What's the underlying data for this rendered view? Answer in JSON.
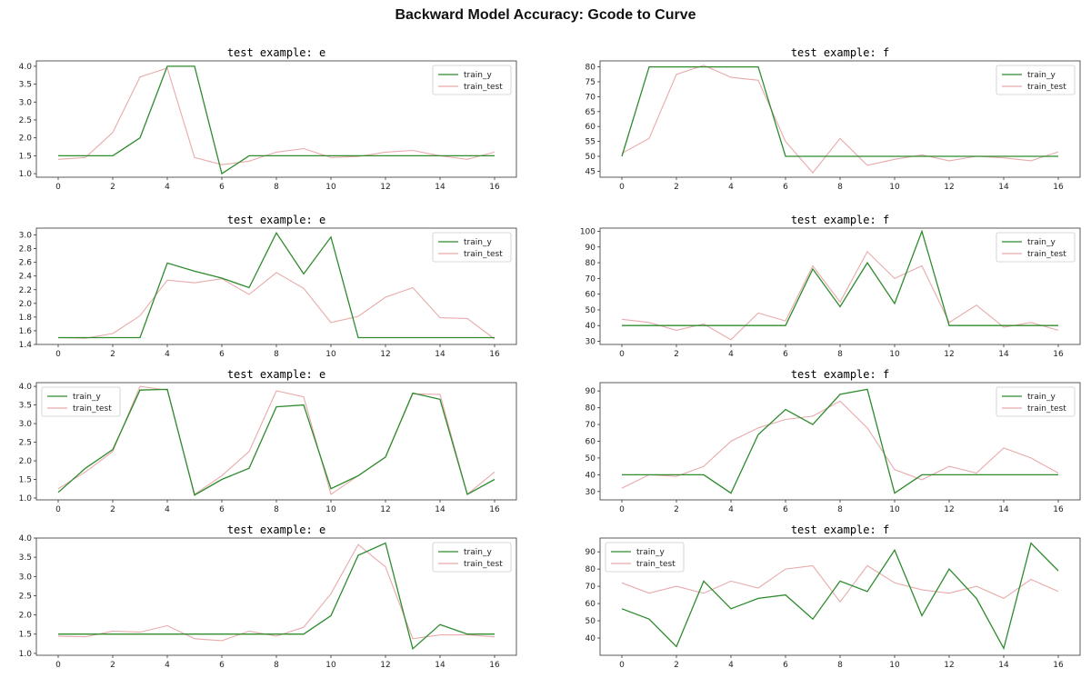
{
  "title": "Backward Model Accuracy: Gcode to Curve",
  "colors": {
    "train_y": "#2e8b2e",
    "train_test": "#e8aaaa",
    "axis": "#333333"
  },
  "chart_data": [
    {
      "type": "line",
      "title": "test example: e",
      "xlim": [
        -0.8,
        16.8
      ],
      "ylim": [
        0.9,
        4.15
      ],
      "xticks": [
        0,
        2,
        4,
        6,
        8,
        10,
        12,
        14,
        16
      ],
      "yticks": [
        1.0,
        1.5,
        2.0,
        2.5,
        3.0,
        3.5,
        4.0
      ],
      "yticklabels": [
        "1.0",
        "1.5",
        "2.0",
        "2.5",
        "3.0",
        "3.5",
        "4.0"
      ],
      "legend": "top-right",
      "x": [
        0,
        1,
        2,
        3,
        4,
        5,
        6,
        7,
        8,
        9,
        10,
        11,
        12,
        13,
        14,
        15,
        16
      ],
      "series": [
        {
          "name": "train_y",
          "values": [
            1.5,
            1.5,
            1.5,
            2.0,
            4.0,
            4.0,
            1.0,
            1.5,
            1.5,
            1.5,
            1.5,
            1.5,
            1.5,
            1.5,
            1.5,
            1.5,
            1.5
          ]
        },
        {
          "name": "train_test",
          "values": [
            1.4,
            1.45,
            2.15,
            3.7,
            3.95,
            1.45,
            1.25,
            1.35,
            1.6,
            1.7,
            1.45,
            1.48,
            1.6,
            1.65,
            1.5,
            1.4,
            1.6
          ]
        }
      ]
    },
    {
      "type": "line",
      "title": "test example: f",
      "xlim": [
        -0.8,
        16.8
      ],
      "ylim": [
        43,
        82
      ],
      "xticks": [
        0,
        2,
        4,
        6,
        8,
        10,
        12,
        14,
        16
      ],
      "yticks": [
        45,
        50,
        55,
        60,
        65,
        70,
        75,
        80
      ],
      "yticklabels": [
        "45",
        "50",
        "55",
        "60",
        "65",
        "70",
        "75",
        "80"
      ],
      "legend": "top-right",
      "x": [
        0,
        1,
        2,
        3,
        4,
        5,
        6,
        7,
        8,
        9,
        10,
        11,
        12,
        13,
        14,
        15,
        16
      ],
      "series": [
        {
          "name": "train_y",
          "values": [
            50,
            80,
            80,
            80,
            80,
            80,
            50,
            50,
            50,
            50,
            50,
            50,
            50,
            50,
            50,
            50,
            50
          ]
        },
        {
          "name": "train_test",
          "values": [
            51,
            56,
            77.5,
            80.5,
            76.5,
            75.5,
            55,
            44.5,
            56,
            47,
            49,
            50.5,
            48.5,
            50,
            49.5,
            48.5,
            51.5
          ]
        }
      ]
    },
    {
      "type": "line",
      "title": "test example: e",
      "xlim": [
        -0.8,
        16.8
      ],
      "ylim": [
        1.4,
        3.1
      ],
      "xticks": [
        0,
        2,
        4,
        6,
        8,
        10,
        12,
        14,
        16
      ],
      "yticks": [
        1.4,
        1.6,
        1.8,
        2.0,
        2.2,
        2.4,
        2.6,
        2.8,
        3.0
      ],
      "yticklabels": [
        "1.4",
        "1.6",
        "1.8",
        "2.0",
        "2.2",
        "2.4",
        "2.6",
        "2.8",
        "3.0"
      ],
      "legend": "top-right",
      "x": [
        0,
        1,
        2,
        3,
        4,
        5,
        6,
        7,
        8,
        9,
        10,
        11,
        12,
        13,
        14,
        15,
        16
      ],
      "series": [
        {
          "name": "train_y",
          "values": [
            1.5,
            1.5,
            1.5,
            1.5,
            2.59,
            2.47,
            2.37,
            2.23,
            3.03,
            2.43,
            2.97,
            1.5,
            1.5,
            1.5,
            1.5,
            1.5,
            1.5
          ]
        },
        {
          "name": "train_test",
          "values": [
            1.5,
            1.49,
            1.56,
            1.82,
            2.34,
            2.3,
            2.36,
            2.13,
            2.45,
            2.22,
            1.72,
            1.81,
            2.09,
            2.23,
            1.79,
            1.78,
            1.48
          ]
        }
      ]
    },
    {
      "type": "line",
      "title": "test example: f",
      "xlim": [
        -0.8,
        16.8
      ],
      "ylim": [
        28,
        102
      ],
      "xticks": [
        0,
        2,
        4,
        6,
        8,
        10,
        12,
        14,
        16
      ],
      "yticks": [
        30,
        40,
        50,
        60,
        70,
        80,
        90,
        100
      ],
      "yticklabels": [
        "30",
        "40",
        "50",
        "60",
        "70",
        "80",
        "90",
        "100"
      ],
      "legend": "top-right",
      "x": [
        0,
        1,
        2,
        3,
        4,
        5,
        6,
        7,
        8,
        9,
        10,
        11,
        12,
        13,
        14,
        15,
        16
      ],
      "series": [
        {
          "name": "train_y",
          "values": [
            40,
            40,
            40,
            40,
            40,
            40,
            40,
            76,
            52,
            80,
            54,
            100,
            40,
            40,
            40,
            40,
            40
          ]
        },
        {
          "name": "train_test",
          "values": [
            44,
            42,
            37,
            41,
            31,
            48,
            43,
            78,
            55,
            87,
            70,
            78,
            42,
            53,
            39,
            42,
            37
          ]
        }
      ]
    },
    {
      "type": "line",
      "title": "test example: e",
      "xlim": [
        -0.8,
        16.8
      ],
      "ylim": [
        0.95,
        4.1
      ],
      "xticks": [
        0,
        2,
        4,
        6,
        8,
        10,
        12,
        14,
        16
      ],
      "yticks": [
        1.0,
        1.5,
        2.0,
        2.5,
        3.0,
        3.5,
        4.0
      ],
      "yticklabels": [
        "1.0",
        "1.5",
        "2.0",
        "2.5",
        "3.0",
        "3.5",
        "4.0"
      ],
      "legend": "top-left",
      "x": [
        0,
        1,
        2,
        3,
        4,
        5,
        6,
        7,
        8,
        9,
        10,
        11,
        12,
        13,
        14,
        15,
        16
      ],
      "series": [
        {
          "name": "train_y",
          "values": [
            1.15,
            1.8,
            2.3,
            3.9,
            3.92,
            1.08,
            1.5,
            1.8,
            3.45,
            3.5,
            1.25,
            1.6,
            2.1,
            3.82,
            3.65,
            1.1,
            1.5
          ]
        },
        {
          "name": "train_test",
          "values": [
            1.25,
            1.7,
            2.25,
            4.0,
            3.9,
            1.1,
            1.6,
            2.25,
            3.88,
            3.72,
            1.1,
            1.6,
            2.1,
            3.8,
            3.78,
            1.1,
            1.7
          ]
        }
      ]
    },
    {
      "type": "line",
      "title": "test example: f",
      "xlim": [
        -0.8,
        16.8
      ],
      "ylim": [
        25,
        95
      ],
      "xticks": [
        0,
        2,
        4,
        6,
        8,
        10,
        12,
        14,
        16
      ],
      "yticks": [
        30,
        40,
        50,
        60,
        70,
        80,
        90
      ],
      "yticklabels": [
        "30",
        "40",
        "50",
        "60",
        "70",
        "80",
        "90"
      ],
      "legend": "top-right",
      "x": [
        0,
        1,
        2,
        3,
        4,
        5,
        6,
        7,
        8,
        9,
        10,
        11,
        12,
        13,
        14,
        15,
        16
      ],
      "series": [
        {
          "name": "train_y",
          "values": [
            40,
            40,
            40,
            40,
            29,
            64,
            79,
            70,
            88,
            91,
            29,
            40,
            40,
            40,
            40,
            40,
            40
          ]
        },
        {
          "name": "train_test",
          "values": [
            32,
            40,
            39,
            45,
            60,
            68,
            73,
            75,
            84,
            68,
            43,
            37,
            45,
            41,
            56,
            50,
            41
          ]
        }
      ]
    },
    {
      "type": "line",
      "title": "test example: e",
      "xlim": [
        -0.8,
        16.8
      ],
      "ylim": [
        0.95,
        4.0
      ],
      "xticks": [
        0,
        2,
        4,
        6,
        8,
        10,
        12,
        14,
        16
      ],
      "yticks": [
        1.0,
        1.5,
        2.0,
        2.5,
        3.0,
        3.5,
        4.0
      ],
      "yticklabels": [
        "1.0",
        "1.5",
        "2.0",
        "2.5",
        "3.0",
        "3.5",
        "4.0"
      ],
      "legend": "top-right",
      "x": [
        0,
        1,
        2,
        3,
        4,
        5,
        6,
        7,
        8,
        9,
        10,
        11,
        12,
        13,
        14,
        15,
        16
      ],
      "series": [
        {
          "name": "train_y",
          "values": [
            1.5,
            1.5,
            1.5,
            1.5,
            1.5,
            1.5,
            1.5,
            1.5,
            1.5,
            1.5,
            1.98,
            3.55,
            3.87,
            1.12,
            1.75,
            1.5,
            1.5
          ]
        },
        {
          "name": "train_test",
          "values": [
            1.45,
            1.43,
            1.58,
            1.55,
            1.72,
            1.38,
            1.33,
            1.58,
            1.45,
            1.68,
            2.55,
            3.83,
            3.25,
            1.38,
            1.48,
            1.48,
            1.43
          ]
        }
      ]
    },
    {
      "type": "line",
      "title": "test example: f",
      "xlim": [
        -0.8,
        16.8
      ],
      "ylim": [
        30,
        98
      ],
      "xticks": [
        0,
        2,
        4,
        6,
        8,
        10,
        12,
        14,
        16
      ],
      "yticks": [
        40,
        50,
        60,
        70,
        80,
        90
      ],
      "yticklabels": [
        "40",
        "50",
        "60",
        "70",
        "80",
        "90"
      ],
      "legend": "top-left",
      "x": [
        0,
        1,
        2,
        3,
        4,
        5,
        6,
        7,
        8,
        9,
        10,
        11,
        12,
        13,
        14,
        15,
        16
      ],
      "series": [
        {
          "name": "train_y",
          "values": [
            57,
            51,
            35,
            73,
            57,
            63,
            65,
            51,
            73,
            67,
            91,
            53,
            80,
            63,
            34,
            95,
            79
          ]
        },
        {
          "name": "train_test",
          "values": [
            72,
            66,
            70,
            66,
            73,
            69,
            80,
            82,
            61,
            82,
            72,
            68,
            66,
            70,
            63,
            74,
            67
          ]
        }
      ]
    }
  ]
}
